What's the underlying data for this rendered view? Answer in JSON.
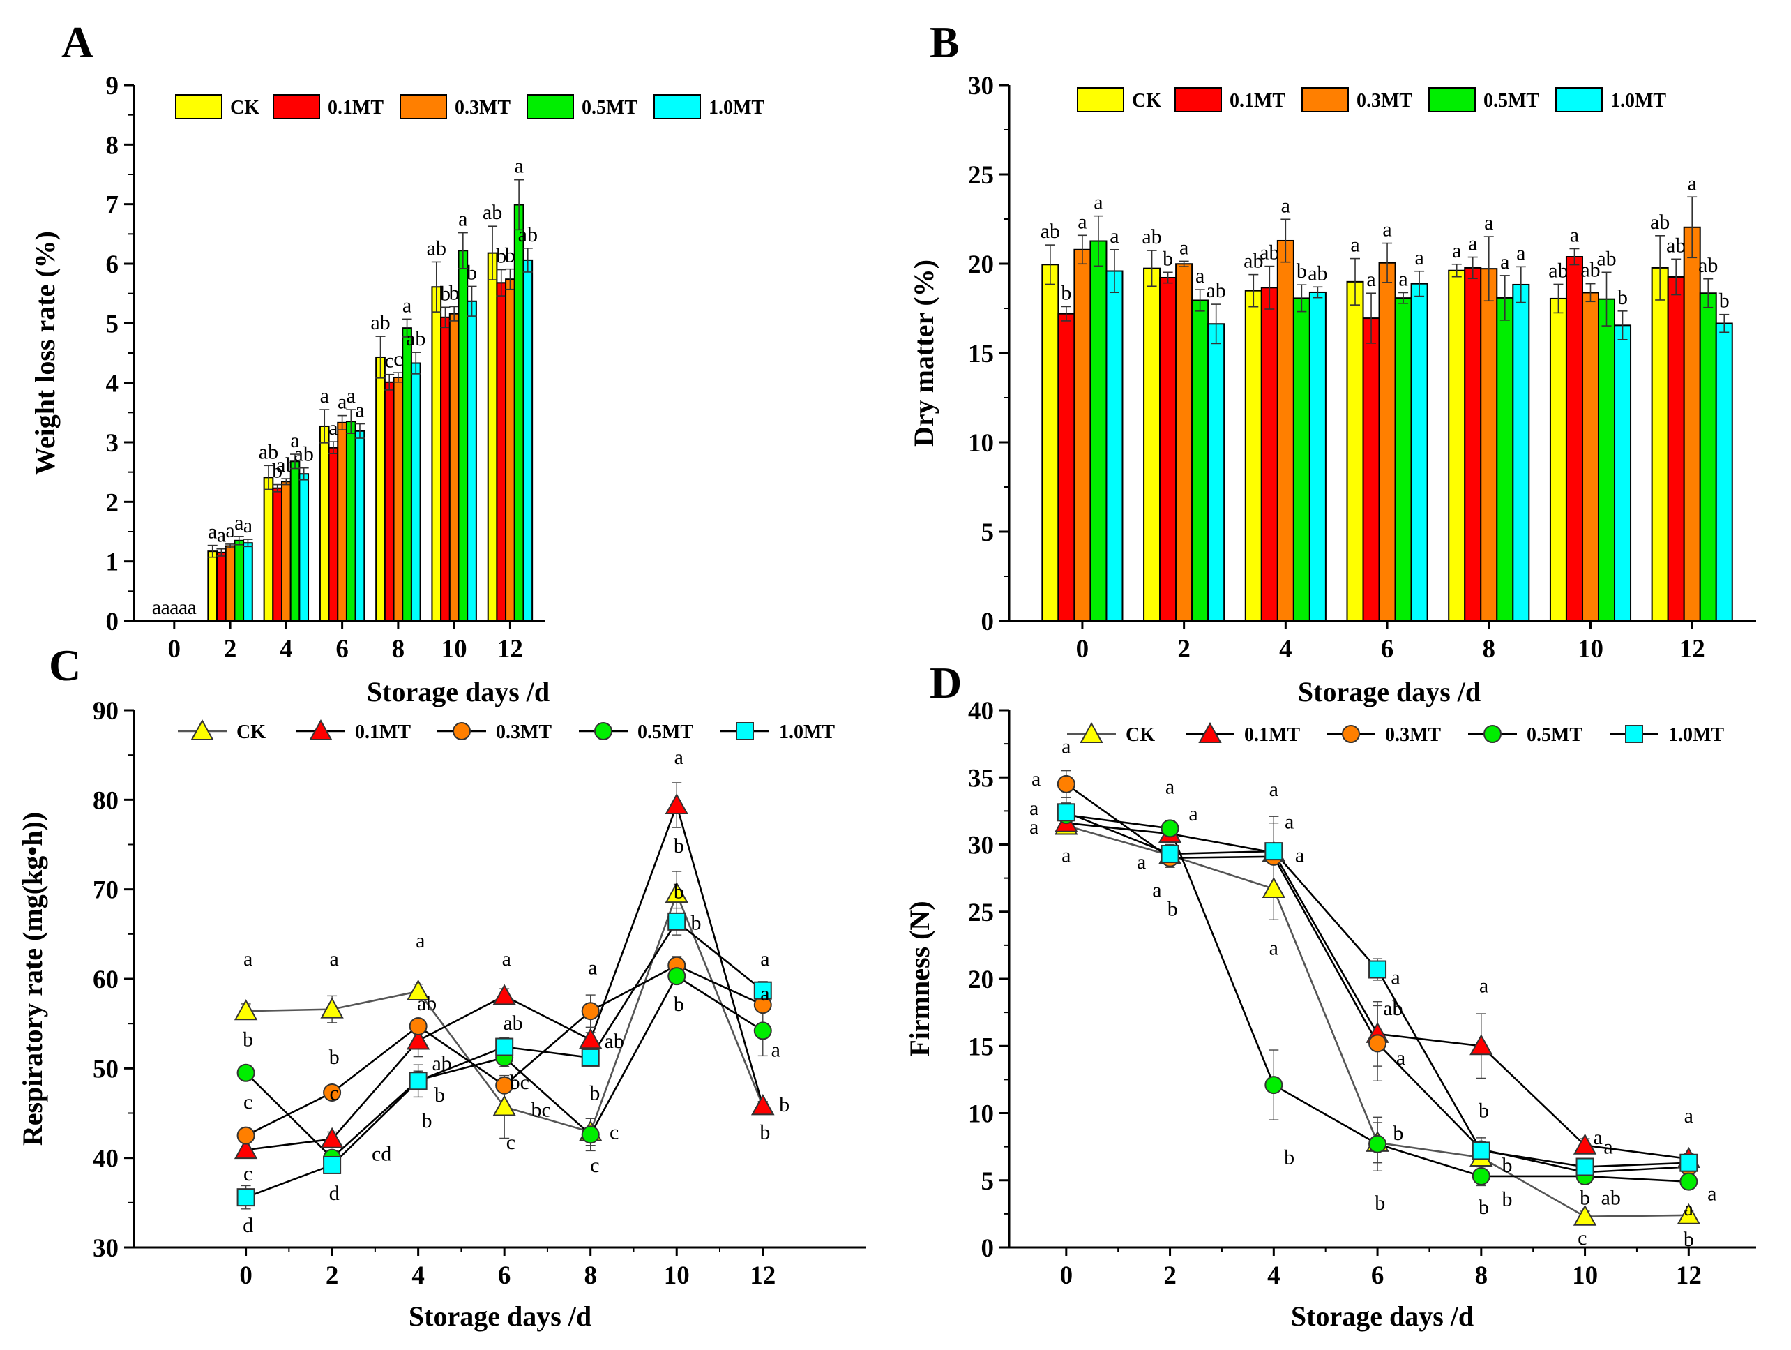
{
  "colors": {
    "CK": "#ffff00",
    "0.1MT": "#ff0000",
    "0.3MT": "#ff7f00",
    "0.5MT": "#00ee00",
    "1.0MT": "#00ffff",
    "line_CK": "#555555",
    "line_default": "#000000"
  },
  "chart_data": [
    {
      "panel": "A",
      "type": "bar",
      "title": "",
      "xlabel": "Storage days /d",
      "ylabel": "Weight loss rate (%)",
      "categories": [
        "0",
        "2",
        "4",
        "6",
        "8",
        "10",
        "12"
      ],
      "ylim": [
        0,
        9
      ],
      "yticks": [
        0,
        1,
        2,
        3,
        4,
        5,
        6,
        7,
        8,
        9
      ],
      "legend": [
        "CK",
        "0.1MT",
        "0.3MT",
        "0.5MT",
        "1.0MT"
      ],
      "legend_position": "top-left",
      "series": [
        {
          "name": "CK",
          "values": [
            0,
            1.17,
            2.41,
            3.27,
            4.43,
            5.61,
            6.18
          ],
          "errors": [
            0,
            0.1,
            0.2,
            0.28,
            0.35,
            0.42,
            0.45
          ],
          "labels": [
            "a",
            "a",
            "ab",
            "a",
            "ab",
            "ab",
            "ab"
          ]
        },
        {
          "name": "0.1MT",
          "values": [
            0,
            1.15,
            2.23,
            2.91,
            4.01,
            5.1,
            5.68
          ],
          "errors": [
            0,
            0.06,
            0.06,
            0.1,
            0.13,
            0.17,
            0.22
          ],
          "labels": [
            "a",
            "a",
            "b",
            "a",
            "c",
            "b",
            "b"
          ]
        },
        {
          "name": "0.3MT",
          "values": [
            0,
            1.26,
            2.34,
            3.33,
            4.09,
            5.16,
            5.74
          ],
          "errors": [
            0,
            0.03,
            0.05,
            0.12,
            0.08,
            0.12,
            0.17
          ],
          "labels": [
            "a",
            "a",
            "ab",
            "a",
            "c",
            "b",
            "b"
          ]
        },
        {
          "name": "0.5MT",
          "values": [
            0,
            1.35,
            2.68,
            3.35,
            4.92,
            6.22,
            6.99
          ],
          "errors": [
            0,
            0.07,
            0.12,
            0.2,
            0.15,
            0.3,
            0.42
          ],
          "labels": [
            "a",
            "a",
            "a",
            "a",
            "a",
            "a",
            "a"
          ]
        },
        {
          "name": "1.0MT",
          "values": [
            0,
            1.31,
            2.47,
            3.19,
            4.33,
            5.37,
            6.06
          ],
          "errors": [
            0,
            0.06,
            0.1,
            0.12,
            0.18,
            0.25,
            0.2
          ],
          "labels": [
            "a",
            "a",
            "ab",
            "a",
            "ab",
            "b",
            "ab"
          ]
        }
      ]
    },
    {
      "panel": "B",
      "type": "bar",
      "title": "",
      "xlabel": "Storage days /d",
      "ylabel": "Dry matter (%)",
      "categories": [
        "0",
        "2",
        "4",
        "6",
        "8",
        "10",
        "12"
      ],
      "ylim": [
        0,
        30
      ],
      "yticks": [
        0,
        5,
        10,
        15,
        20,
        25,
        30
      ],
      "legend": [
        "CK",
        "0.1MT",
        "0.3MT",
        "0.5MT",
        "1.0MT"
      ],
      "legend_position": "top",
      "series": [
        {
          "name": "CK",
          "values": [
            19.95,
            19.74,
            18.49,
            18.99,
            19.62,
            18.05,
            19.77
          ],
          "errors": [
            1.1,
            1.0,
            0.9,
            1.3,
            0.35,
            0.8,
            1.8
          ],
          "labels": [
            "ab",
            "ab",
            "ab",
            "a",
            "a",
            "ab",
            "ab"
          ]
        },
        {
          "name": "0.1MT",
          "values": [
            17.2,
            19.22,
            18.66,
            16.95,
            19.77,
            20.39,
            19.26
          ],
          "errors": [
            0.4,
            0.3,
            1.2,
            1.4,
            0.6,
            0.45,
            1.0
          ],
          "labels": [
            "b",
            "b",
            "ab",
            "a",
            "a",
            "a",
            "ab"
          ]
        },
        {
          "name": "0.3MT",
          "values": [
            20.79,
            19.99,
            21.29,
            20.05,
            19.72,
            18.38,
            22.04
          ],
          "errors": [
            0.8,
            0.15,
            1.2,
            1.1,
            1.8,
            0.5,
            1.7
          ],
          "labels": [
            "a",
            "a",
            "a",
            "a",
            "a",
            "ab",
            "a"
          ]
        },
        {
          "name": "0.5MT",
          "values": [
            21.27,
            17.95,
            18.07,
            18.08,
            18.09,
            18.02,
            18.35
          ],
          "errors": [
            1.4,
            0.6,
            0.75,
            0.3,
            1.25,
            1.5,
            0.8
          ],
          "labels": [
            "a",
            "a",
            "b",
            "a",
            "a",
            "ab",
            "ab"
          ]
        },
        {
          "name": "1.0MT",
          "values": [
            19.59,
            16.63,
            18.4,
            18.88,
            18.83,
            16.55,
            16.66
          ],
          "errors": [
            1.2,
            1.1,
            0.3,
            0.7,
            1.0,
            0.8,
            0.5
          ],
          "labels": [
            "a",
            "ab",
            "ab",
            "a",
            "a",
            "b",
            "b"
          ]
        }
      ]
    },
    {
      "panel": "C",
      "type": "line",
      "title": "",
      "xlabel": "Storage days /d",
      "ylabel": "Respiratory rate (mg(kg•h))",
      "x": [
        0,
        2,
        4,
        6,
        8,
        10,
        12
      ],
      "xlim": [
        -2.6,
        14.4
      ],
      "ylim": [
        30,
        90
      ],
      "yticks": [
        30,
        40,
        50,
        60,
        70,
        80,
        90
      ],
      "legend": [
        "CK",
        "0.1MT",
        "0.3MT",
        "0.5MT",
        "1.0MT"
      ],
      "legend_position": "top",
      "series": [
        {
          "name": "CK",
          "marker": "triangle",
          "values": [
            56.4,
            56.6,
            58.6,
            45.7,
            42.9,
            69.5,
            45.8
          ],
          "errors": [
            0.8,
            1.5,
            0.8,
            3.5,
            1.5,
            2.5,
            0.5
          ]
        },
        {
          "name": "0.1MT",
          "marker": "triangle",
          "values": [
            40.9,
            42.1,
            53.1,
            58.1,
            53.2,
            79.4,
            45.8
          ],
          "errors": [
            0.8,
            0.8,
            1.8,
            0.8,
            0.8,
            2.5,
            0.5
          ]
        },
        {
          "name": "0.3MT",
          "marker": "circle",
          "values": [
            42.5,
            47.3,
            54.7,
            48.1,
            56.4,
            61.5,
            57.1
          ],
          "errors": [
            0.8,
            0.8,
            0.8,
            0.8,
            1.8,
            1.0,
            0.8
          ]
        },
        {
          "name": "0.5MT",
          "marker": "circle",
          "values": [
            49.5,
            40.0,
            48.7,
            51.2,
            42.6,
            60.3,
            54.2
          ],
          "errors": [
            0.5,
            0.8,
            1.0,
            1.0,
            1.8,
            0.8,
            2.8
          ]
        },
        {
          "name": "1.0MT",
          "marker": "square",
          "values": [
            35.6,
            39.2,
            48.6,
            52.4,
            51.2,
            66.4,
            58.7
          ],
          "errors": [
            1.3,
            0.8,
            1.8,
            1.0,
            0.8,
            1.5,
            1.0
          ]
        }
      ],
      "annotations": [
        {
          "text": "a",
          "x": 0.05,
          "y": 61.5
        },
        {
          "text": "b",
          "x": 0.05,
          "y": 52.5
        },
        {
          "text": "c",
          "x": 0.05,
          "y": 45.5
        },
        {
          "text": "c",
          "x": 0.05,
          "y": 37.5
        },
        {
          "text": "d",
          "x": 0.05,
          "y": 31.7
        },
        {
          "text": "a",
          "x": 2.05,
          "y": 61.5
        },
        {
          "text": "b",
          "x": 2.05,
          "y": 50.5
        },
        {
          "text": "c",
          "x": 2.05,
          "y": 46.5
        },
        {
          "text": "cd",
          "x": 3.15,
          "y": 39.7
        },
        {
          "text": "d",
          "x": 2.05,
          "y": 35.3
        },
        {
          "text": "a",
          "x": 4.05,
          "y": 63.5
        },
        {
          "text": "ab",
          "x": 4.2,
          "y": 56.5
        },
        {
          "text": "ab",
          "x": 4.55,
          "y": 49.8
        },
        {
          "text": "b",
          "x": 4.5,
          "y": 46.3
        },
        {
          "text": "b",
          "x": 4.2,
          "y": 43.4
        },
        {
          "text": "a",
          "x": 6.05,
          "y": 61.5
        },
        {
          "text": "ab",
          "x": 6.2,
          "y": 54.3
        },
        {
          "text": "bc",
          "x": 6.35,
          "y": 47.7
        },
        {
          "text": "bc",
          "x": 6.85,
          "y": 44.6
        },
        {
          "text": "c",
          "x": 6.15,
          "y": 41.0
        },
        {
          "text": "a",
          "x": 8.05,
          "y": 60.5
        },
        {
          "text": "ab",
          "x": 8.55,
          "y": 52.3
        },
        {
          "text": "b",
          "x": 8.1,
          "y": 46.5
        },
        {
          "text": "c",
          "x": 8.55,
          "y": 42.1
        },
        {
          "text": "c",
          "x": 8.1,
          "y": 38.4
        },
        {
          "text": "a",
          "x": 10.05,
          "y": 84.0
        },
        {
          "text": "b",
          "x": 10.05,
          "y": 74.1
        },
        {
          "text": "b",
          "x": 10.05,
          "y": 69.0
        },
        {
          "text": "b",
          "x": 10.45,
          "y": 65.5
        },
        {
          "text": "b",
          "x": 10.05,
          "y": 56.4
        },
        {
          "text": "a",
          "x": 12.05,
          "y": 61.5
        },
        {
          "text": "a",
          "x": 12.05,
          "y": 57.6
        },
        {
          "text": "a",
          "x": 12.3,
          "y": 51.3
        },
        {
          "text": "b",
          "x": 12.5,
          "y": 45.2
        },
        {
          "text": "b",
          "x": 12.05,
          "y": 42.1
        }
      ]
    },
    {
      "panel": "D",
      "type": "line",
      "title": "",
      "xlabel": "Storage days /d",
      "ylabel": "Firmness (N)",
      "x": [
        0,
        2,
        4,
        6,
        8,
        10,
        12
      ],
      "xlim": [
        -1.1,
        13.3
      ],
      "ylim": [
        0,
        40
      ],
      "yticks": [
        0,
        5,
        10,
        15,
        20,
        25,
        30,
        35,
        40
      ],
      "legend": [
        "CK",
        "0.1MT",
        "0.3MT",
        "0.5MT",
        "1.0MT"
      ],
      "legend_position": "top",
      "series": [
        {
          "name": "CK",
          "marker": "triangle",
          "values": [
            31.4,
            29.2,
            26.7,
            7.8,
            6.7,
            2.3,
            2.4
          ],
          "errors": [
            0.6,
            0.5,
            2.3,
            1.5,
            0.6,
            0.4,
            0.3
          ]
        },
        {
          "name": "0.1MT",
          "marker": "triangle",
          "values": [
            31.6,
            30.8,
            29.4,
            15.9,
            15.0,
            7.6,
            6.6
          ],
          "errors": [
            0.5,
            0.5,
            2.7,
            2.4,
            2.4,
            0.5,
            0.4
          ]
        },
        {
          "name": "0.3MT",
          "marker": "circle",
          "values": [
            34.5,
            29.0,
            29.1,
            15.2,
            7.3,
            5.6,
            6.0
          ],
          "errors": [
            1.0,
            0.7,
            2.5,
            2.8,
            0.8,
            0.5,
            0.6
          ]
        },
        {
          "name": "0.5MT",
          "marker": "circle",
          "values": [
            32.2,
            31.2,
            12.1,
            7.7,
            5.3,
            5.3,
            4.9
          ],
          "errors": [
            1.3,
            0.6,
            2.6,
            2.0,
            0.7,
            0.5,
            0.5
          ]
        },
        {
          "name": "1.0MT",
          "marker": "square",
          "values": [
            32.4,
            29.3,
            29.5,
            20.7,
            7.2,
            6.0,
            6.3
          ],
          "errors": [
            0.7,
            0.7,
            2.6,
            0.8,
            1.0,
            0.5,
            0.6
          ]
        }
      ],
      "annotations": [
        {
          "text": "a",
          "x": 0.0,
          "y": 36.8
        },
        {
          "text": "a",
          "x": -0.58,
          "y": 34.4
        },
        {
          "text": "a",
          "x": -0.62,
          "y": 32.2
        },
        {
          "text": "a",
          "x": -0.62,
          "y": 30.8
        },
        {
          "text": "a",
          "x": 0.0,
          "y": 28.7
        },
        {
          "text": "a",
          "x": 2.0,
          "y": 33.8
        },
        {
          "text": "a",
          "x": 2.45,
          "y": 31.8
        },
        {
          "text": "a",
          "x": 1.45,
          "y": 28.2
        },
        {
          "text": "a",
          "x": 1.75,
          "y": 26.1
        },
        {
          "text": "b",
          "x": 2.05,
          "y": 24.7
        },
        {
          "text": "a",
          "x": 4.0,
          "y": 33.6
        },
        {
          "text": "a",
          "x": 4.3,
          "y": 31.2
        },
        {
          "text": "a",
          "x": 4.5,
          "y": 28.7
        },
        {
          "text": "a",
          "x": 4.0,
          "y": 21.8
        },
        {
          "text": "b",
          "x": 4.3,
          "y": 6.2
        },
        {
          "text": "a",
          "x": 6.35,
          "y": 19.6
        },
        {
          "text": "ab",
          "x": 6.3,
          "y": 17.3
        },
        {
          "text": "a",
          "x": 6.45,
          "y": 13.6
        },
        {
          "text": "b",
          "x": 6.4,
          "y": 8.0
        },
        {
          "text": "b",
          "x": 6.05,
          "y": 2.8
        },
        {
          "text": "a",
          "x": 8.05,
          "y": 19.0
        },
        {
          "text": "b",
          "x": 8.05,
          "y": 9.7
        },
        {
          "text": "b",
          "x": 8.5,
          "y": 5.6
        },
        {
          "text": "b",
          "x": 8.05,
          "y": 2.5
        },
        {
          "text": "b",
          "x": 8.5,
          "y": 3.1
        },
        {
          "text": "a",
          "x": 10.25,
          "y": 7.7
        },
        {
          "text": "a",
          "x": 10.45,
          "y": 7.0
        },
        {
          "text": "b",
          "x": 10.0,
          "y": 3.2
        },
        {
          "text": "ab",
          "x": 10.5,
          "y": 3.2
        },
        {
          "text": "c",
          "x": 9.95,
          "y": 0.2
        },
        {
          "text": "a",
          "x": 12.0,
          "y": 9.3
        },
        {
          "text": "a",
          "x": 12.45,
          "y": 3.5
        },
        {
          "text": "a",
          "x": 12.0,
          "y": 2.4
        },
        {
          "text": "b",
          "x": 12.0,
          "y": 0.1
        }
      ]
    }
  ]
}
